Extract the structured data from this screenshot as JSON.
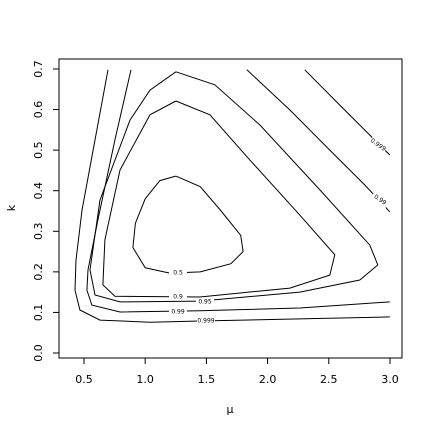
{
  "chart_data": {
    "type": "contour",
    "x_label": "μ",
    "y_label": "k",
    "xlim": [
      0.296,
      3.098
    ],
    "ylim": [
      -0.0123,
      0.7246
    ],
    "xticks": [
      0.5,
      {
        "value": 1,
        "label": "1.0"
      },
      1.5,
      {
        "value": 2,
        "label": "2.0"
      },
      2.5,
      {
        "value": 3,
        "label": "3.0"
      }
    ],
    "yticks": [
      {
        "value": 0,
        "label": "0.0"
      },
      0.1,
      0.2,
      0.3,
      0.4,
      0.5,
      0.6,
      0.7
    ],
    "color": "#000000",
    "series": [
      {
        "level": 0.5,
        "x": [
          1.25,
          1.45,
          1.62,
          1.78,
          1.8,
          1.7,
          1.45,
          1.2,
          1.0,
          0.9,
          0.92,
          1.0,
          1.12,
          1.25
        ],
        "y": [
          0.436,
          0.41,
          0.35,
          0.29,
          0.25,
          0.22,
          0.2,
          0.197,
          0.21,
          0.26,
          0.32,
          0.38,
          0.425,
          0.436
        ]
      },
      {
        "level": 0.9,
        "x": [
          1.251,
          1.529,
          1.855,
          2.263,
          2.549,
          2.508,
          2.182,
          1.447,
          0.753,
          0.655,
          0.671,
          0.794,
          1.039,
          1.251
        ],
        "y": [
          0.621,
          0.587,
          0.476,
          0.34,
          0.242,
          0.192,
          0.16,
          0.138,
          0.14,
          0.168,
          0.279,
          0.451,
          0.587,
          0.621
        ]
      },
      {
        "level": 0.95,
        "x": [
          1.251,
          1.569,
          1.937,
          2.427,
          2.835,
          2.9,
          2.753,
          2.263,
          1.447,
          0.794,
          0.59,
          0.549,
          0.631,
          0.876,
          1.039,
          1.251
        ],
        "y": [
          0.693,
          0.661,
          0.562,
          0.402,
          0.266,
          0.217,
          0.18,
          0.15,
          0.128,
          0.126,
          0.143,
          0.205,
          0.377,
          0.574,
          0.648,
          0.693
        ]
      },
      {
        "level": 0.99,
        "x": [
          0.884,
          0.753,
          0.614,
          0.533,
          0.524,
          0.565,
          0.794,
          1.447,
          2.263,
          2.998,
          null,
          1.831,
          2.182,
          2.508,
          2.794,
          2.998
        ],
        "y": [
          0.698,
          0.525,
          0.328,
          0.205,
          0.155,
          0.118,
          0.101,
          0.104,
          0.111,
          0.126,
          null,
          0.698,
          0.599,
          0.5,
          0.414,
          0.348
        ]
      },
      {
        "level": 0.999,
        "x": [
          0.696,
          0.59,
          0.484,
          0.435,
          0.427,
          0.467,
          0.631,
          1.039,
          1.447,
          2.263,
          2.998,
          null,
          2.304,
          2.59,
          2.835,
          2.998
        ],
        "y": [
          0.698,
          0.525,
          0.352,
          0.229,
          0.155,
          0.106,
          0.081,
          0.076,
          0.079,
          0.084,
          0.089,
          null,
          0.698,
          0.611,
          0.537,
          0.488
        ]
      }
    ]
  }
}
